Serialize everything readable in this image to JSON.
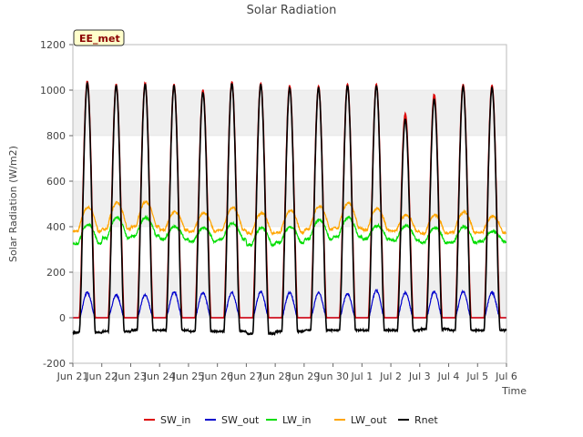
{
  "chart_data": {
    "type": "line",
    "title": "Solar Radiation",
    "xlabel": "Time",
    "ylabel": "Solar Radiation (W/m2)",
    "ylim": [
      -200,
      1200
    ],
    "yticks": [
      -200,
      0,
      200,
      400,
      600,
      800,
      1000,
      1200
    ],
    "xlim": [
      "2024-06-21",
      "2024-07-06"
    ],
    "xticks": [
      "Jun 21",
      "Jun 22",
      "Jun 23",
      "Jun 24",
      "Jun 25",
      "Jun 26",
      "Jun 27",
      "Jun 28",
      "Jun 29",
      "Jun 30",
      "Jul 1",
      "Jul 2",
      "Jul 3",
      "Jul 4",
      "Jul 5",
      "Jul 6"
    ],
    "badge": "EE_met",
    "grid": "alternating horizontal bands",
    "legend_position": "bottom-center",
    "days": [
      "Jun 21",
      "Jun 22",
      "Jun 23",
      "Jun 24",
      "Jun 25",
      "Jun 26",
      "Jun 27",
      "Jun 28",
      "Jun 29",
      "Jun 30",
      "Jul 1",
      "Jul 2",
      "Jul 3",
      "Jul 4",
      "Jul 5"
    ],
    "series": [
      {
        "name": "SW_in",
        "color": "#dd0000",
        "daily_peak": [
          1040,
          1025,
          1030,
          1025,
          1000,
          1035,
          1030,
          1020,
          1015,
          1025,
          1025,
          895,
          980,
          1025,
          1020
        ],
        "night_value": 0
      },
      {
        "name": "SW_out",
        "color": "#0000cc",
        "daily_peak": [
          110,
          100,
          100,
          115,
          110,
          110,
          115,
          110,
          110,
          105,
          120,
          110,
          115,
          115,
          110
        ],
        "night_value": 0
      },
      {
        "name": "LW_in",
        "color": "#00dd00",
        "daily_peak": [
          410,
          440,
          440,
          400,
          395,
          415,
          395,
          400,
          430,
          440,
          405,
          405,
          395,
          400,
          380
        ],
        "night_value": [
          325,
          350,
          360,
          345,
          335,
          345,
          320,
          330,
          345,
          355,
          345,
          340,
          330,
          330,
          335
        ]
      },
      {
        "name": "LW_out",
        "color": "#ffa500",
        "daily_peak": [
          485,
          505,
          510,
          465,
          460,
          485,
          460,
          470,
          490,
          505,
          480,
          450,
          450,
          465,
          445
        ],
        "night_value": [
          380,
          390,
          400,
          385,
          380,
          385,
          370,
          375,
          390,
          395,
          385,
          380,
          370,
          375,
          375
        ]
      },
      {
        "name": "Rnet",
        "color": "#000000",
        "daily_peak": [
          1030,
          1020,
          1025,
          1020,
          990,
          1030,
          1025,
          1010,
          1010,
          1020,
          1020,
          870,
          960,
          1015,
          1010
        ],
        "night_value": [
          -65,
          -60,
          -55,
          -55,
          -60,
          -60,
          -70,
          -60,
          -55,
          -55,
          -55,
          -55,
          -50,
          -55,
          -55
        ]
      }
    ]
  }
}
